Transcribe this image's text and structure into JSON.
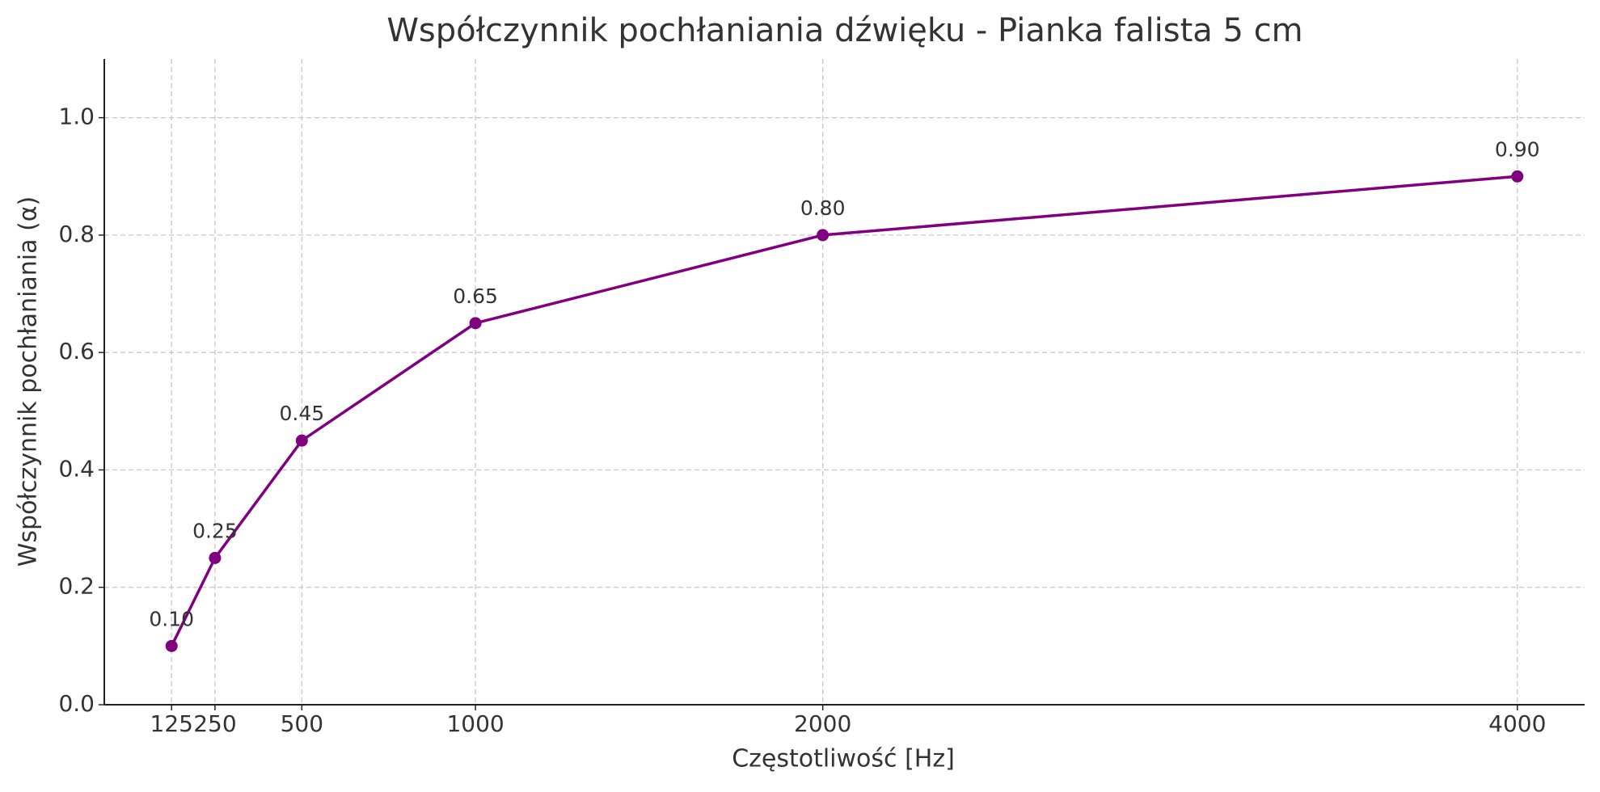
{
  "chart_data": {
    "type": "line",
    "title": "Współczynnik pochłaniania dźwięku - Pianka falista 5 cm",
    "x_label": "Częstotliwość [Hz]",
    "y_label": "Współczynnik pochłaniania (α)",
    "x": [
      125,
      250,
      500,
      1000,
      2000,
      4000
    ],
    "series": [
      {
        "name": "Pianka falista 5 cm",
        "color": "#800080",
        "values": [
          0.1,
          0.25,
          0.45,
          0.65,
          0.8,
          0.9
        ],
        "value_labels": [
          "0.10",
          "0.25",
          "0.45",
          "0.65",
          "0.80",
          "0.90"
        ]
      }
    ],
    "xlim": [
      -68.75,
      4193.75
    ],
    "xticks": [
      125,
      250,
      500,
      1000,
      2000,
      4000
    ],
    "ylim": [
      0,
      1.1
    ],
    "yticks": [
      {
        "value": 0,
        "label": "0.0"
      },
      0.2,
      0.4,
      0.6,
      0.8,
      {
        "value": 1,
        "label": "1.0"
      }
    ],
    "grid": true
  }
}
